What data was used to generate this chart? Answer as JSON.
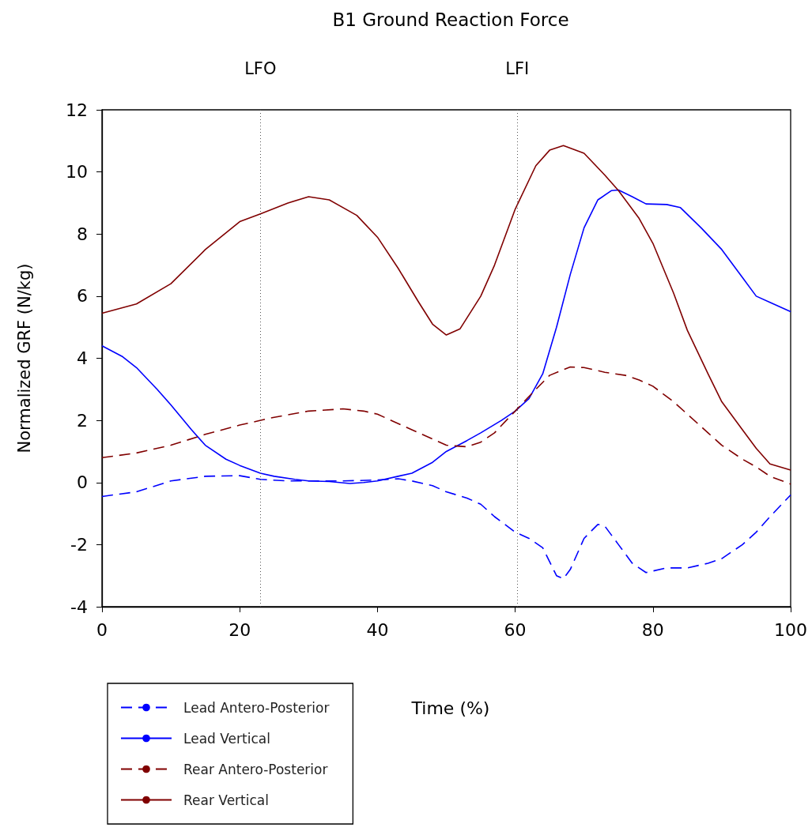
{
  "chart_data": {
    "type": "line",
    "title": "B1 Ground Reaction Force",
    "xlabel": "Time (%)",
    "ylabel": "Normalized GRF (N/kg)",
    "xlim": [
      0,
      100
    ],
    "xticks": [
      0,
      20,
      40,
      60,
      80,
      100
    ],
    "ylim": [
      -4,
      12
    ],
    "yticks": [
      -4,
      -2,
      0,
      2,
      4,
      6,
      8,
      10,
      12
    ],
    "grid": false,
    "legend": "bottom left",
    "marker": "none",
    "ref_lines": [
      {
        "axis": "x",
        "value": 23,
        "label": "LFO",
        "color": "#555555",
        "line_style": "dotted"
      },
      {
        "axis": "x",
        "value": 60.3,
        "label": "LFI",
        "color": "#555555",
        "line_style": "dotted"
      }
    ],
    "series": [
      {
        "name": "Lead Antero-Posterior",
        "color": "#0000ff",
        "line_style": "dashed",
        "x": [
          0,
          5,
          10,
          15,
          20,
          23,
          27,
          30,
          35,
          40,
          43,
          45,
          48,
          50,
          53,
          55,
          57,
          60,
          62,
          64,
          66,
          67,
          68,
          70,
          72,
          73,
          75,
          77,
          79,
          80,
          82,
          85,
          88,
          90,
          93,
          95,
          97,
          100
        ],
        "values": [
          -0.45,
          -0.3,
          0.05,
          0.2,
          0.22,
          0.1,
          0.05,
          0.05,
          0.05,
          0.08,
          0.12,
          0.05,
          -0.1,
          -0.3,
          -0.5,
          -0.7,
          -1.1,
          -1.6,
          -1.8,
          -2.1,
          -3.0,
          -3.1,
          -2.8,
          -1.8,
          -1.35,
          -1.4,
          -2.0,
          -2.6,
          -2.9,
          -2.85,
          -2.75,
          -2.75,
          -2.6,
          -2.45,
          -2.0,
          -1.6,
          -1.1,
          -0.4
        ]
      },
      {
        "name": "Lead Vertical",
        "color": "#0000ff",
        "line_style": "solid",
        "x": [
          0,
          3,
          5,
          8,
          10,
          13,
          15,
          18,
          20,
          23,
          25,
          28,
          30,
          33,
          36,
          38,
          40,
          43,
          45,
          48,
          50,
          53,
          55,
          58,
          60,
          62,
          64,
          66,
          68,
          70,
          72,
          74,
          75,
          77,
          79,
          82,
          84,
          87,
          90,
          93,
          95,
          97,
          100
        ],
        "values": [
          4.4,
          4.05,
          3.7,
          3.0,
          2.5,
          1.7,
          1.2,
          0.75,
          0.55,
          0.3,
          0.2,
          0.1,
          0.05,
          0.03,
          -0.03,
          0.0,
          0.05,
          0.2,
          0.3,
          0.65,
          1.0,
          1.35,
          1.6,
          2.0,
          2.3,
          2.7,
          3.5,
          5.0,
          6.7,
          8.2,
          9.1,
          9.4,
          9.42,
          9.2,
          8.97,
          8.95,
          8.85,
          8.2,
          7.5,
          6.6,
          6.0,
          5.8,
          5.5
        ]
      },
      {
        "name": "Rear Antero-Posterior",
        "color": "#800000",
        "line_style": "dashed",
        "x": [
          0,
          5,
          10,
          15,
          20,
          25,
          30,
          35,
          38,
          40,
          45,
          50,
          53,
          55,
          57,
          60,
          63,
          65,
          68,
          70,
          73,
          76,
          78,
          80,
          83,
          85,
          88,
          90,
          93,
          95,
          97,
          100
        ],
        "values": [
          0.8,
          0.95,
          1.2,
          1.55,
          1.85,
          2.1,
          2.3,
          2.37,
          2.3,
          2.2,
          1.7,
          1.2,
          1.15,
          1.3,
          1.6,
          2.3,
          3.0,
          3.45,
          3.72,
          3.7,
          3.55,
          3.45,
          3.3,
          3.1,
          2.6,
          2.2,
          1.6,
          1.2,
          0.75,
          0.5,
          0.2,
          -0.05
        ]
      },
      {
        "name": "Rear Vertical",
        "color": "#800000",
        "line_style": "solid",
        "x": [
          0,
          5,
          10,
          15,
          20,
          23,
          27,
          30,
          33,
          37,
          40,
          43,
          46,
          48,
          50,
          52,
          55,
          57,
          60,
          63,
          65,
          67,
          70,
          73,
          75,
          78,
          80,
          83,
          85,
          88,
          90,
          93,
          95,
          97,
          100
        ],
        "values": [
          5.45,
          5.75,
          6.4,
          7.5,
          8.4,
          8.65,
          9.0,
          9.2,
          9.1,
          8.6,
          7.9,
          6.9,
          5.8,
          5.1,
          4.75,
          4.95,
          6.0,
          7.0,
          8.8,
          10.2,
          10.7,
          10.85,
          10.6,
          9.9,
          9.4,
          8.5,
          7.7,
          6.1,
          4.9,
          3.5,
          2.6,
          1.7,
          1.1,
          0.6,
          0.4
        ]
      }
    ]
  }
}
